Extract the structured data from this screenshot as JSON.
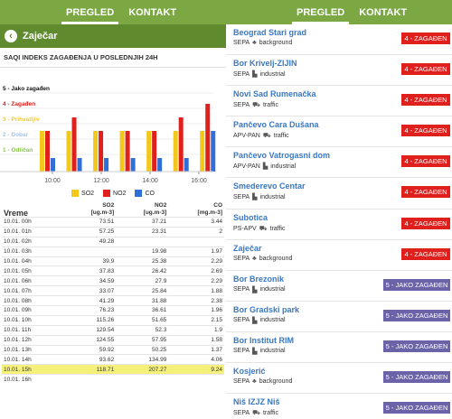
{
  "left": {
    "nav": {
      "tab1": "PREGLED",
      "tab2": "KONTAKT"
    },
    "city": {
      "back_icon": "‹",
      "name": "Zaječar"
    },
    "subtitle": "SAQI INDEKS ZAGAĐENJA U POSLEDNJIH 24H",
    "levels": [
      {
        "label": "5 - Jako zagađen",
        "color": "#111111"
      },
      {
        "label": "4 - Zagađen",
        "color": "#e0201c"
      },
      {
        "label": "3 - Prihvatljiv",
        "color": "#f3c81b"
      },
      {
        "label": "2 - Dobar",
        "color": "#a7c4e8"
      },
      {
        "label": "1 - Odličan",
        "color": "#8bc34a"
      }
    ],
    "chart_data": {
      "type": "bar",
      "title": "",
      "xlabel": "",
      "ylabel": "",
      "ylim": [
        0,
        5
      ],
      "x_ticks": [
        "10:00",
        "12:00",
        "14:00",
        "16:00"
      ],
      "categories": [
        "09:00",
        "10:00",
        "11:00",
        "12:00",
        "13:00",
        "14:00",
        "15:00"
      ],
      "series": [
        {
          "name": "SO2",
          "color": "#f3c81b",
          "values": [
            3,
            3,
            3,
            3,
            3,
            3,
            3
          ]
        },
        {
          "name": "NO2",
          "color": "#e0201c",
          "values": [
            3,
            4,
            3,
            3,
            3,
            4,
            5
          ]
        },
        {
          "name": "CO",
          "color": "#2f6fd6",
          "values": [
            1,
            1,
            1,
            1,
            1,
            1,
            3
          ]
        }
      ],
      "legend_position": "bottom",
      "grid": true
    },
    "table": {
      "headers": [
        "Vreme",
        "SO2\n[ug.m-3]",
        "NO2\n[ug.m-3]",
        "CO\n[mg.m-3]"
      ],
      "h_vreme": "Vreme",
      "h_so2": "SO2",
      "h_so2_unit": "[ug.m-3]",
      "h_no2": "NO2",
      "h_no2_unit": "[ug.m-3]",
      "h_co": "CO",
      "h_co_unit": "[mg.m-3]",
      "rows": [
        [
          "10.01. 00h",
          "73.51",
          "37.21",
          "3.44"
        ],
        [
          "10.01. 01h",
          "57.25",
          "23.31",
          "2"
        ],
        [
          "10.01. 02h",
          "49.28",
          "",
          ""
        ],
        [
          "10.01. 03h",
          "",
          "19.98",
          "1.97"
        ],
        [
          "10.01. 04h",
          "39.9",
          "25.38",
          "2.29"
        ],
        [
          "10.01. 05h",
          "37.83",
          "26.42",
          "2.69"
        ],
        [
          "10.01. 06h",
          "34.59",
          "27.9",
          "2.29"
        ],
        [
          "10.01. 07h",
          "33.07",
          "25.84",
          "1.88"
        ],
        [
          "10.01. 08h",
          "41.29",
          "31.88",
          "2.38"
        ],
        [
          "10.01. 09h",
          "76.23",
          "36.61",
          "1.96"
        ],
        [
          "10.01. 10h",
          "115.26",
          "51.65",
          "2.15"
        ],
        [
          "10.01. 11h",
          "129.54",
          "52.3",
          "1.9"
        ],
        [
          "10.01. 12h",
          "124.55",
          "57.95",
          "1.58"
        ],
        [
          "10.01. 13h",
          "59.92",
          "50.25",
          "1.37"
        ],
        [
          "10.01. 14h",
          "93.62",
          "134.99",
          "4.06"
        ],
        [
          "10.01. 15h",
          "118.71",
          "207.27",
          "9.24"
        ],
        [
          "10.01. 16h",
          "",
          "",
          ""
        ]
      ]
    }
  },
  "right": {
    "nav": {
      "tab1": "PREGLED",
      "tab2": "KONTAKT"
    },
    "stations": [
      {
        "name": "Beograd Stari grad",
        "network": "SEPA",
        "icon": "tree-icon",
        "glyph": "♣",
        "type": "background",
        "badge": "4 - ZAGAĐEN",
        "level": "red"
      },
      {
        "name": "Bor Krivelj-ZIJIN",
        "network": "SEPA",
        "icon": "factory-icon",
        "glyph": "▙",
        "type": "industrial",
        "badge": "4 - ZAGAĐEN",
        "level": "red"
      },
      {
        "name": "Novi Sad Rumenačka",
        "network": "SEPA",
        "icon": "car-icon",
        "glyph": "⛟",
        "type": "traffic",
        "badge": "4 - ZAGAĐEN",
        "level": "red"
      },
      {
        "name": "Pančevo Cara Dušana",
        "network": "APV-PAN",
        "icon": "car-icon",
        "glyph": "⛟",
        "type": "traffic",
        "badge": "4 - ZAGAĐEN",
        "level": "red"
      },
      {
        "name": "Pančevo Vatrogasni dom",
        "network": "APV-PAN",
        "icon": "factory-icon",
        "glyph": "▙",
        "type": "industrial",
        "badge": "4 - ZAGAĐEN",
        "level": "red"
      },
      {
        "name": "Smederevo Centar",
        "network": "SEPA",
        "icon": "factory-icon",
        "glyph": "▙",
        "type": "industrial",
        "badge": "4 - ZAGAĐEN",
        "level": "red"
      },
      {
        "name": "Subotica",
        "network": "PS-APV",
        "icon": "car-icon",
        "glyph": "⛟",
        "type": "traffic",
        "badge": "4 - ZAGAĐEN",
        "level": "red"
      },
      {
        "name": "Zaječar",
        "network": "SEPA",
        "icon": "tree-icon",
        "glyph": "♣",
        "type": "background",
        "badge": "4 - ZAGAĐEN",
        "level": "red"
      },
      {
        "name": "Bor Brezonik",
        "network": "SEPA",
        "icon": "factory-icon",
        "glyph": "▙",
        "type": "industrial",
        "badge": "5 - JAKO ZAGAĐEN",
        "level": "purple"
      },
      {
        "name": "Bor Gradski park",
        "network": "SEPA",
        "icon": "factory-icon",
        "glyph": "▙",
        "type": "industrial",
        "badge": "5 - JAKO ZAGAĐEN",
        "level": "purple"
      },
      {
        "name": "Bor Institut RIM",
        "network": "SEPA",
        "icon": "factory-icon",
        "glyph": "▙",
        "type": "industrial",
        "badge": "5 - JAKO ZAGAĐEN",
        "level": "purple"
      },
      {
        "name": "Kosjerić",
        "network": "SEPA",
        "icon": "tree-icon",
        "glyph": "♣",
        "type": "background",
        "badge": "5 - JAKO ZAGAĐEN",
        "level": "purple"
      },
      {
        "name": "Niš IZJZ Niš",
        "network": "SEPA",
        "icon": "car-icon",
        "glyph": "⛟",
        "type": "traffic",
        "badge": "5 - JAKO ZAGAĐEN",
        "level": "purple"
      }
    ]
  }
}
